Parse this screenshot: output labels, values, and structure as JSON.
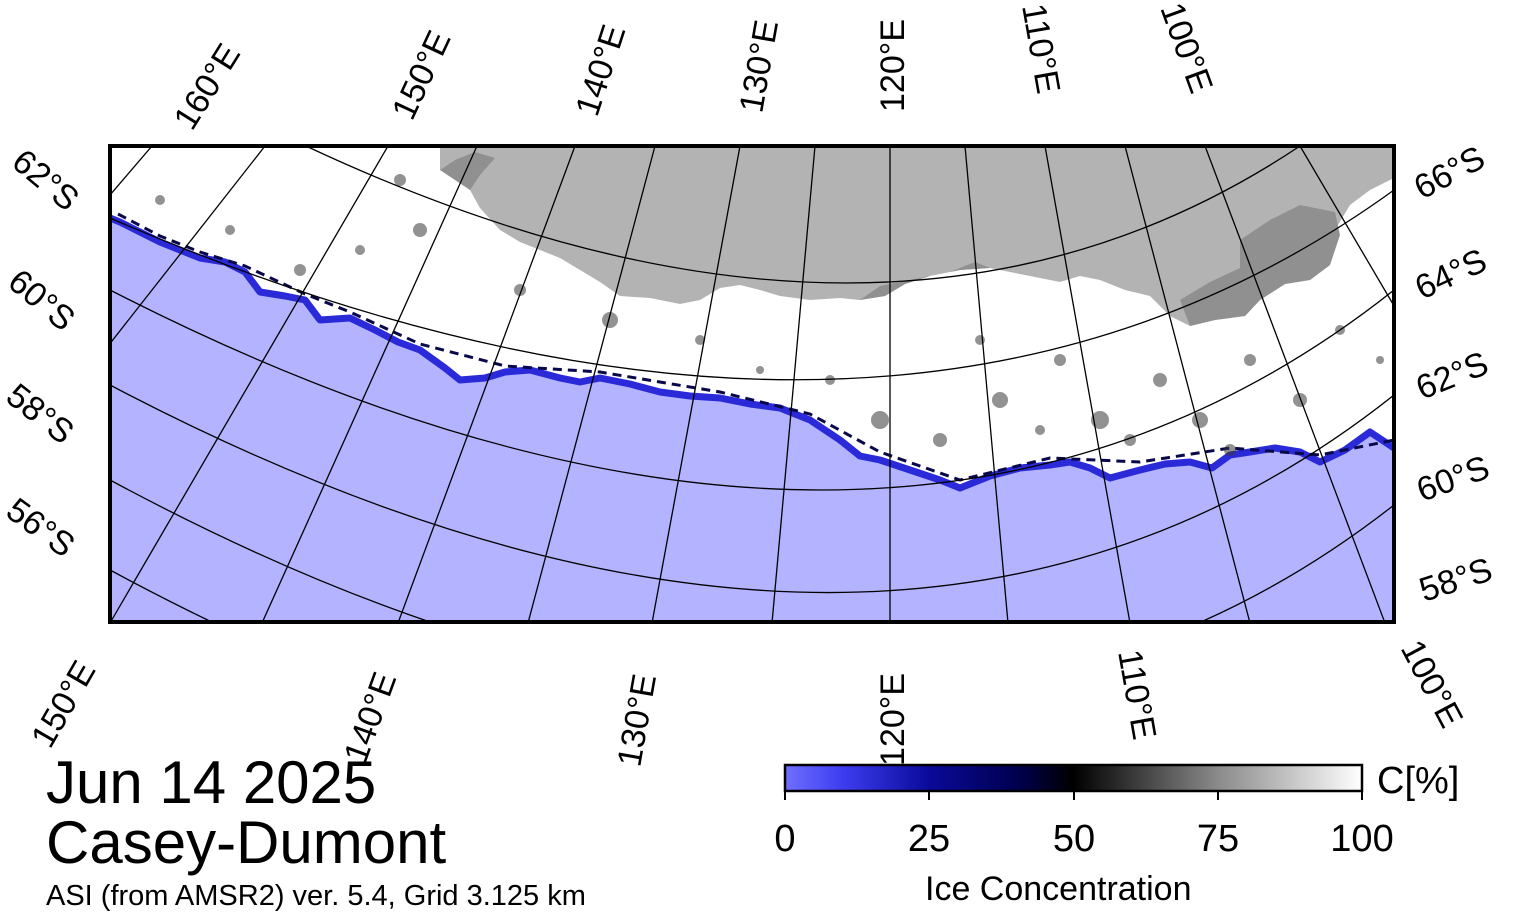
{
  "map": {
    "date": "Jun 14 2025",
    "region": "Casey-Dumont",
    "product": "ASI (from AMSR2) ver. 5.4,  Grid 3.125 km",
    "colors": {
      "ocean": "#b3b3ff",
      "land": "#b3b3b3",
      "shelf_ice": "#909090",
      "ice": "#ffffff",
      "frame": "#000000"
    },
    "top_lon_labels": [
      "160°E",
      "150°E",
      "140°E",
      "130°E",
      "120°E",
      "110°E",
      "100°E"
    ],
    "bottom_lon_labels": [
      "150°E",
      "140°E",
      "130°E",
      "120°E",
      "110°E",
      "100°E"
    ],
    "left_lat_labels": [
      "62°S",
      "60°S",
      "58°S",
      "56°S"
    ],
    "right_lat_labels": [
      "66°S",
      "64°S",
      "62°S",
      "60°S",
      "58°S"
    ]
  },
  "colorbar": {
    "title": "Ice Concentration",
    "unit": "C[%]",
    "ticks": [
      "0",
      "25",
      "50",
      "75",
      "100"
    ],
    "range": [
      0,
      100
    ],
    "gradient_stops": [
      {
        "value": 0,
        "color": "#6f6fff"
      },
      {
        "value": 10,
        "color": "#3d3df0"
      },
      {
        "value": 25,
        "color": "#0a0a9a"
      },
      {
        "value": 40,
        "color": "#000050"
      },
      {
        "value": 50,
        "color": "#000000"
      },
      {
        "value": 75,
        "color": "#8a8a8a"
      },
      {
        "value": 100,
        "color": "#ffffff"
      }
    ]
  }
}
